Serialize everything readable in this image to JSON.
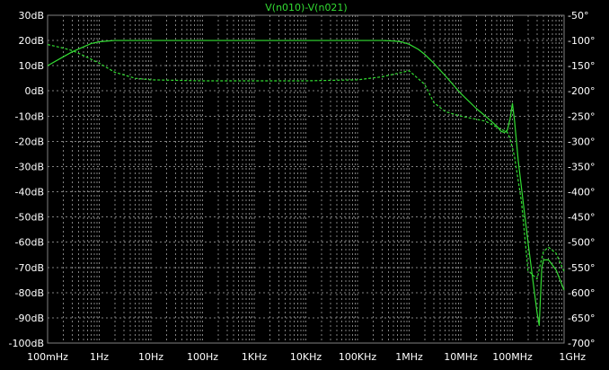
{
  "window": {
    "background": "#000000",
    "grid_color": "#808080",
    "text_color": "#FFFFFF",
    "trace_color": "#33DD33"
  },
  "chart_data": {
    "type": "line",
    "title": "V(n010)-V(n021)",
    "x_scale": "log",
    "xlim_hz": [
      0.1,
      1000000000
    ],
    "x_ticks": [
      {
        "value": 0.1,
        "label": "100mHz"
      },
      {
        "value": 1,
        "label": "1Hz"
      },
      {
        "value": 10,
        "label": "10Hz"
      },
      {
        "value": 100,
        "label": "100Hz"
      },
      {
        "value": 1000,
        "label": "1KHz"
      },
      {
        "value": 10000,
        "label": "10KHz"
      },
      {
        "value": 100000,
        "label": "100KHz"
      },
      {
        "value": 1000000,
        "label": "1MHz"
      },
      {
        "value": 10000000,
        "label": "10MHz"
      },
      {
        "value": 100000000,
        "label": "100MHz"
      },
      {
        "value": 1000000000,
        "label": "1GHz"
      }
    ],
    "y_left": {
      "unit": "dB",
      "ylim": [
        -100,
        30
      ],
      "ticks": [
        {
          "value": 30,
          "label": "30dB"
        },
        {
          "value": 20,
          "label": "20dB"
        },
        {
          "value": 10,
          "label": "10dB"
        },
        {
          "value": 0,
          "label": "0dB"
        },
        {
          "value": -10,
          "label": "-10dB"
        },
        {
          "value": -20,
          "label": "-20dB"
        },
        {
          "value": -30,
          "label": "-30dB"
        },
        {
          "value": -40,
          "label": "-40dB"
        },
        {
          "value": -50,
          "label": "-50dB"
        },
        {
          "value": -60,
          "label": "-60dB"
        },
        {
          "value": -70,
          "label": "-70dB"
        },
        {
          "value": -80,
          "label": "-80dB"
        },
        {
          "value": -90,
          "label": "-90dB"
        },
        {
          "value": -100,
          "label": "-100dB"
        }
      ]
    },
    "y_right": {
      "unit": "degrees",
      "ylim": [
        -700,
        -50
      ],
      "ticks": [
        {
          "value": -50,
          "label": "-50°"
        },
        {
          "value": -100,
          "label": "-100°"
        },
        {
          "value": -150,
          "label": "-150°"
        },
        {
          "value": -200,
          "label": "-200°"
        },
        {
          "value": -250,
          "label": "-250°"
        },
        {
          "value": -300,
          "label": "-300°"
        },
        {
          "value": -350,
          "label": "-350°"
        },
        {
          "value": -400,
          "label": "-400°"
        },
        {
          "value": -450,
          "label": "-450°"
        },
        {
          "value": -500,
          "label": "-500°"
        },
        {
          "value": -550,
          "label": "-550°"
        },
        {
          "value": -600,
          "label": "-600°"
        },
        {
          "value": -650,
          "label": "-650°"
        },
        {
          "value": -700,
          "label": "-700°"
        }
      ]
    },
    "grid": true,
    "series": [
      {
        "style": "solid",
        "axis": "left",
        "x": [
          0.1,
          0.2,
          0.3,
          0.5,
          0.7,
          1,
          1.5,
          2,
          3,
          5,
          10,
          100,
          1000,
          10000,
          100000,
          300000,
          500000,
          700000,
          1000000,
          1500000,
          2000000,
          3000000,
          5000000,
          10000000,
          20000000,
          30000000,
          50000000,
          60000000,
          70000000,
          80000000,
          90000000,
          100000000,
          110000000,
          130000000,
          200000000,
          300000000,
          330000000,
          370000000,
          400000000,
          500000000,
          700000000,
          1000000000
        ],
        "values": [
          10,
          13.5,
          15.5,
          17.5,
          18.8,
          19.5,
          19.8,
          20,
          20,
          20,
          20,
          20,
          20,
          20,
          20,
          20,
          19.8,
          19.5,
          18.5,
          16.5,
          14.5,
          11,
          6,
          -1,
          -7,
          -10,
          -14,
          -16,
          -16.5,
          -15.5,
          -11,
          -5,
          -12,
          -28,
          -60,
          -88,
          -93,
          -70,
          -67,
          -67,
          -71,
          -79
        ]
      },
      {
        "style": "dashed",
        "axis": "right",
        "x": [
          0.1,
          0.2,
          0.3,
          0.5,
          1,
          2,
          5,
          10,
          100,
          1000,
          10000,
          100000,
          300000,
          1000000,
          2000000,
          3000000,
          5000000,
          10000000,
          30000000,
          50000000,
          80000000,
          90000000,
          100000000,
          110000000,
          150000000,
          200000000,
          300000000,
          350000000,
          400000000,
          500000000,
          700000000,
          1000000000
        ],
        "values": [
          -108,
          -115,
          -120,
          -130,
          -145,
          -163,
          -175,
          -178,
          -180,
          -180,
          -180,
          -178,
          -172,
          -160,
          -187,
          -223,
          -241,
          -250,
          -260,
          -272,
          -282,
          -295,
          -313,
          -331,
          -421,
          -556,
          -573,
          -542,
          -518,
          -510,
          -522,
          -558
        ]
      }
    ]
  }
}
